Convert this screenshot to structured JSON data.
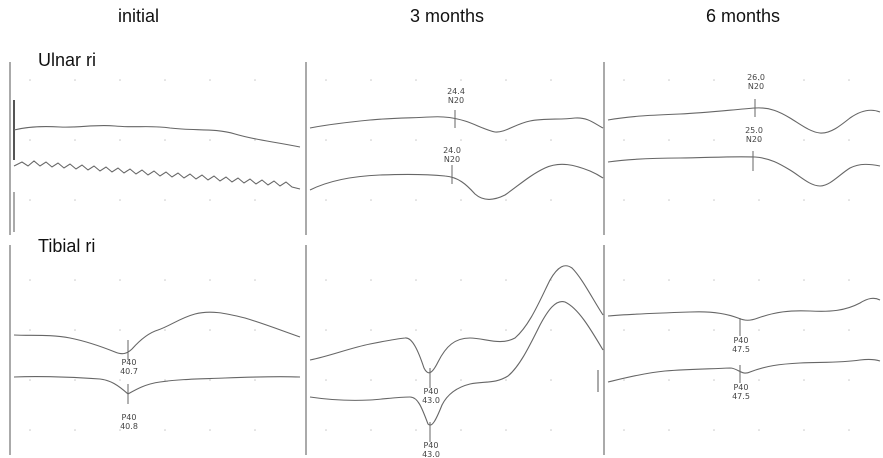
{
  "columns": [
    "initial",
    "3 months",
    "6 months"
  ],
  "rows": [
    "Ulnar ri",
    "Tibial ri"
  ],
  "annotations": {
    "ulnar_3m_upper": {
      "label": "N20",
      "value": "24.4"
    },
    "ulnar_3m_lower": {
      "label": "N20",
      "value": "24.0"
    },
    "ulnar_6m_upper": {
      "label": "N20",
      "value": "26.0"
    },
    "ulnar_6m_lower": {
      "label": "N20",
      "value": "25.0"
    },
    "tibial_initial_upper": {
      "label": "P40",
      "value": "40.7"
    },
    "tibial_initial_lower": {
      "label": "P40",
      "value": "40.8"
    },
    "tibial_3m_upper": {
      "label": "P40",
      "value": "43.0"
    },
    "tibial_3m_lower": {
      "label": "P40",
      "value": "43.0"
    },
    "tibial_6m_upper": {
      "label": "P40",
      "value": "47.5"
    },
    "tibial_6m_lower": {
      "label": "P40",
      "value": "47.5"
    }
  },
  "colors": {
    "trace": "#666666",
    "axis": "#555555",
    "grid_dot": "#c8c8c8",
    "text": "#111111"
  }
}
